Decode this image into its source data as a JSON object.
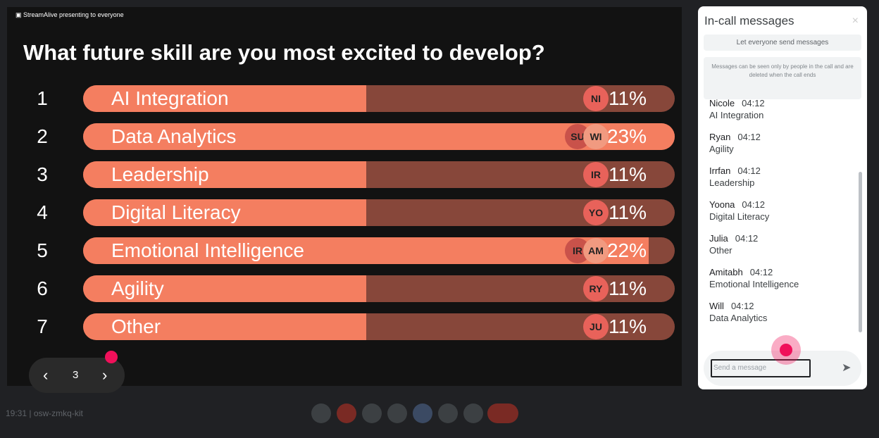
{
  "presenter": "StreamAlive presenting to everyone",
  "question": "What future skill are you most excited to develop?",
  "options": [
    {
      "rank": 1,
      "label": "AI Integration",
      "value": 11,
      "value_label": "11%",
      "avatars": [
        "NI"
      ]
    },
    {
      "rank": 2,
      "label": "Data Analytics",
      "value": 23,
      "value_label": "23%",
      "avatars": [
        "SU",
        "WI"
      ]
    },
    {
      "rank": 3,
      "label": "Leadership",
      "value": 11,
      "value_label": "11%",
      "avatars": [
        "IR"
      ]
    },
    {
      "rank": 4,
      "label": "Digital Literacy",
      "value": 11,
      "value_label": "11%",
      "avatars": [
        "YO"
      ]
    },
    {
      "rank": 5,
      "label": "Emotional Intelligence",
      "value": 22,
      "value_label": "22%",
      "avatars": [
        "IR",
        "AM"
      ]
    },
    {
      "rank": 6,
      "label": "Agility",
      "value": 11,
      "value_label": "11%",
      "avatars": [
        "RY"
      ]
    },
    {
      "rank": 7,
      "label": "Other",
      "value": 11,
      "value_label": "11%",
      "avatars": [
        "JU"
      ]
    }
  ],
  "pager": {
    "page": 3
  },
  "sidebar": {
    "title": "In-call messages",
    "toggle": "Let everyone send messages",
    "notice": "Messages can be seen only by people in the call and are deleted when the call ends",
    "messages": [
      {
        "name": "Nicole",
        "time": "04:12",
        "text": "AI Integration"
      },
      {
        "name": "Ryan",
        "time": "04:12",
        "text": "Agility"
      },
      {
        "name": "Irrfan",
        "time": "04:12",
        "text": "Leadership"
      },
      {
        "name": "Yoona",
        "time": "04:12",
        "text": "Digital Literacy"
      },
      {
        "name": "Julia",
        "time": "04:12",
        "text": "Other"
      },
      {
        "name": "Amitabh",
        "time": "04:12",
        "text": "Emotional Intelligence"
      },
      {
        "name": "Will",
        "time": "04:12",
        "text": "Data Analytics"
      }
    ],
    "input_placeholder": "Send a message"
  },
  "meeting_info": "19:31 | osw-zmkq-kit"
}
